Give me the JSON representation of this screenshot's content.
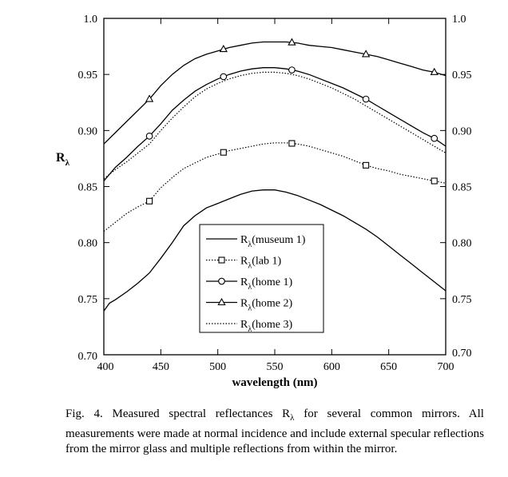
{
  "chart_data": {
    "type": "line",
    "ylabel_main": "R",
    "ylabel_sub": "λ",
    "xlabel": "wavelength (nm)",
    "xlim": [
      400,
      700
    ],
    "ylim": [
      0.7,
      1.0
    ],
    "x_ticks": [
      400,
      450,
      500,
      550,
      600,
      650,
      700
    ],
    "x_tick_labels": [
      "400",
      "450",
      "500",
      "550",
      "600",
      "650",
      "700"
    ],
    "y_ticks": [
      0.7,
      0.75,
      0.8,
      0.85,
      0.9,
      0.95,
      1.0
    ],
    "y_tick_labels": [
      "0.70",
      "0.75",
      "0.80",
      "0.85",
      "0.90",
      "0.95",
      "1.0"
    ],
    "grid": false,
    "legend_position": "center-left",
    "series": [
      {
        "name": "(museum 1)",
        "label_main": "R",
        "label_sub": "λ",
        "style": "solid",
        "marker": "none",
        "x": [
          400,
          405,
          410,
          420,
          430,
          440,
          450,
          460,
          470,
          480,
          490,
          500,
          510,
          520,
          530,
          540,
          550,
          560,
          570,
          580,
          590,
          600,
          610,
          620,
          630,
          640,
          650,
          660,
          670,
          680,
          690,
          700
        ],
        "y": [
          0.739,
          0.746,
          0.749,
          0.756,
          0.764,
          0.773,
          0.786,
          0.8,
          0.815,
          0.824,
          0.831,
          0.835,
          0.839,
          0.843,
          0.846,
          0.847,
          0.847,
          0.845,
          0.842,
          0.838,
          0.834,
          0.829,
          0.824,
          0.818,
          0.812,
          0.805,
          0.797,
          0.789,
          0.781,
          0.773,
          0.765,
          0.757
        ]
      },
      {
        "name": "(lab 1)",
        "label_main": "R",
        "label_sub": "λ",
        "style": "dotted",
        "marker": "square",
        "markers_x": [
          440,
          505,
          565,
          630,
          690
        ],
        "x": [
          400,
          410,
          420,
          430,
          440,
          450,
          460,
          470,
          480,
          490,
          500,
          510,
          520,
          530,
          540,
          550,
          560,
          570,
          580,
          590,
          600,
          610,
          620,
          630,
          640,
          650,
          660,
          670,
          680,
          690,
          700
        ],
        "y": [
          0.81,
          0.818,
          0.826,
          0.832,
          0.837,
          0.849,
          0.858,
          0.866,
          0.871,
          0.876,
          0.879,
          0.882,
          0.884,
          0.886,
          0.888,
          0.889,
          0.889,
          0.888,
          0.886,
          0.883,
          0.88,
          0.877,
          0.873,
          0.869,
          0.866,
          0.864,
          0.861,
          0.859,
          0.857,
          0.855,
          0.853
        ]
      },
      {
        "name": "(home 1)",
        "label_main": "R",
        "label_sub": "λ",
        "style": "solid",
        "marker": "circle",
        "markers_x": [
          440,
          505,
          565,
          630,
          690
        ],
        "x": [
          400,
          410,
          420,
          430,
          440,
          450,
          460,
          470,
          480,
          490,
          500,
          510,
          520,
          530,
          540,
          550,
          560,
          570,
          580,
          590,
          600,
          610,
          620,
          630,
          640,
          650,
          660,
          670,
          680,
          690,
          700
        ],
        "y": [
          0.855,
          0.867,
          0.876,
          0.886,
          0.895,
          0.906,
          0.918,
          0.927,
          0.935,
          0.941,
          0.946,
          0.95,
          0.953,
          0.955,
          0.956,
          0.956,
          0.955,
          0.953,
          0.95,
          0.946,
          0.942,
          0.938,
          0.933,
          0.928,
          0.922,
          0.916,
          0.91,
          0.904,
          0.898,
          0.893,
          0.886
        ]
      },
      {
        "name": "(home 2)",
        "label_main": "R",
        "label_sub": "λ",
        "style": "solid",
        "marker": "triangle",
        "markers_x": [
          440,
          505,
          565,
          630,
          690
        ],
        "x": [
          400,
          410,
          420,
          430,
          440,
          450,
          460,
          470,
          480,
          490,
          500,
          510,
          520,
          530,
          540,
          550,
          560,
          570,
          580,
          590,
          600,
          610,
          620,
          630,
          640,
          650,
          660,
          670,
          680,
          690,
          700
        ],
        "y": [
          0.888,
          0.898,
          0.908,
          0.918,
          0.928,
          0.94,
          0.95,
          0.958,
          0.964,
          0.968,
          0.971,
          0.974,
          0.976,
          0.978,
          0.979,
          0.979,
          0.979,
          0.978,
          0.976,
          0.975,
          0.974,
          0.972,
          0.97,
          0.968,
          0.966,
          0.963,
          0.96,
          0.957,
          0.954,
          0.952,
          0.949
        ]
      },
      {
        "name": "(home 3)",
        "label_main": "R",
        "label_sub": "λ",
        "style": "dotted",
        "marker": "none",
        "x": [
          400,
          410,
          420,
          430,
          440,
          450,
          460,
          470,
          480,
          490,
          500,
          510,
          520,
          530,
          540,
          550,
          560,
          570,
          580,
          590,
          600,
          610,
          620,
          630,
          640,
          650,
          660,
          670,
          680,
          690,
          700
        ],
        "y": [
          0.857,
          0.865,
          0.872,
          0.88,
          0.888,
          0.9,
          0.911,
          0.921,
          0.93,
          0.937,
          0.942,
          0.946,
          0.949,
          0.951,
          0.952,
          0.952,
          0.951,
          0.949,
          0.946,
          0.942,
          0.938,
          0.933,
          0.928,
          0.922,
          0.916,
          0.91,
          0.904,
          0.898,
          0.892,
          0.886,
          0.88
        ]
      }
    ]
  },
  "caption": {
    "line1": "Fig. 4. Measured spectral reflectances R",
    "sub": "λ",
    "line1_rest": " for several common mirrors. All",
    "line2": "measurements were made at normal incidence and include external specular",
    "line3": "reflections from the mirror glass and multiple reflections from within the",
    "line4": "mirror."
  }
}
